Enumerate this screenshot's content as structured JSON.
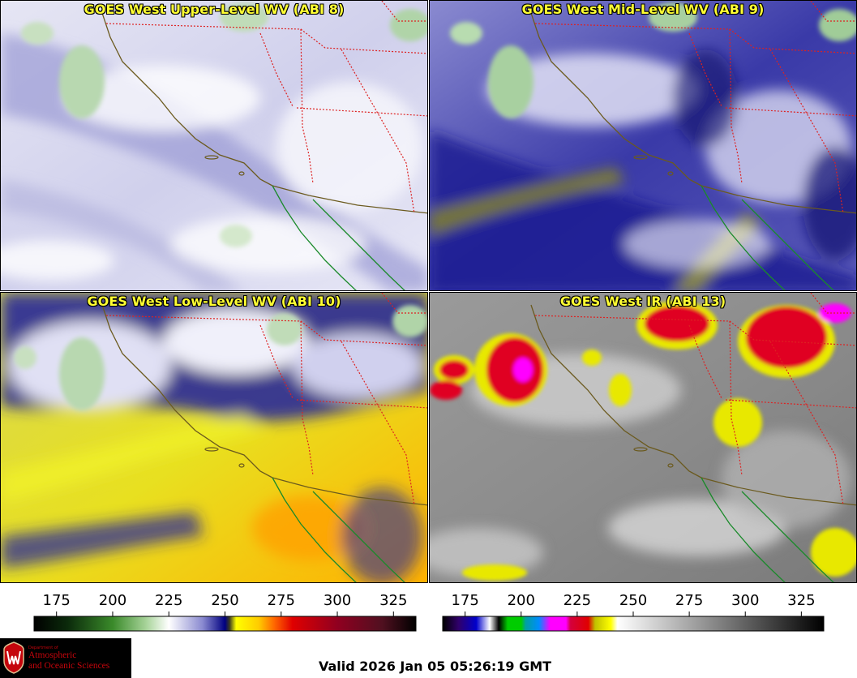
{
  "panels": [
    {
      "id": "upper",
      "title": "GOES West Upper-Level WV (ABI 8)"
    },
    {
      "id": "mid",
      "title": "GOES West Mid-Level WV (ABI 9)"
    },
    {
      "id": "low",
      "title": "GOES West Low-Level WV (ABI 10)"
    },
    {
      "id": "ir",
      "title": "GOES West IR (ABI 13)"
    }
  ],
  "colorbars": {
    "wv": {
      "ticks": [
        "175",
        "200",
        "225",
        "250",
        "275",
        "300",
        "325"
      ],
      "range": [
        165,
        335
      ],
      "stops": [
        {
          "v": 165,
          "c": "#000000"
        },
        {
          "v": 180,
          "c": "#0b2a0b"
        },
        {
          "v": 200,
          "c": "#3a8a2a"
        },
        {
          "v": 215,
          "c": "#a8d49a"
        },
        {
          "v": 225,
          "c": "#ffffff"
        },
        {
          "v": 240,
          "c": "#8a8ad0"
        },
        {
          "v": 250,
          "c": "#000080"
        },
        {
          "v": 252,
          "c": "#3a3a20"
        },
        {
          "v": 255,
          "c": "#ffff00"
        },
        {
          "v": 265,
          "c": "#ffcc00"
        },
        {
          "v": 272,
          "c": "#ff6600"
        },
        {
          "v": 280,
          "c": "#e00000"
        },
        {
          "v": 300,
          "c": "#900020"
        },
        {
          "v": 320,
          "c": "#501020"
        },
        {
          "v": 335,
          "c": "#000000"
        }
      ]
    },
    "ir": {
      "ticks": [
        "175",
        "200",
        "225",
        "250",
        "275",
        "300",
        "325"
      ],
      "range": [
        165,
        335
      ],
      "stops": [
        {
          "v": 165,
          "c": "#000000"
        },
        {
          "v": 172,
          "c": "#30006a"
        },
        {
          "v": 180,
          "c": "#0000cc"
        },
        {
          "v": 186,
          "c": "#ffffff"
        },
        {
          "v": 190,
          "c": "#000000"
        },
        {
          "v": 194,
          "c": "#00cc00"
        },
        {
          "v": 200,
          "c": "#00cc00"
        },
        {
          "v": 202,
          "c": "#00a0a0"
        },
        {
          "v": 208,
          "c": "#008cff"
        },
        {
          "v": 213,
          "c": "#ff00ff"
        },
        {
          "v": 220,
          "c": "#ff00ff"
        },
        {
          "v": 222,
          "c": "#d4003c"
        },
        {
          "v": 230,
          "c": "#e00000"
        },
        {
          "v": 233,
          "c": "#c0c000"
        },
        {
          "v": 240,
          "c": "#ffff00"
        },
        {
          "v": 243,
          "c": "#ffffff"
        },
        {
          "v": 335,
          "c": "#000000"
        }
      ]
    }
  },
  "logo": {
    "dept": "Department of",
    "line1": "Atmospheric",
    "line2": "and Oceanic Sciences"
  },
  "valid_time": "Valid 2026 Jan 05 05:26:19 GMT"
}
